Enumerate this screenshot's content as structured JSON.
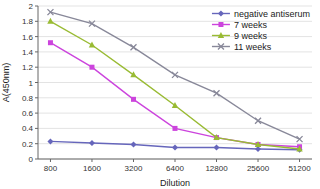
{
  "chart_data": {
    "type": "line",
    "categories": [
      "800",
      "1600",
      "3200",
      "6400",
      "12800",
      "25600",
      "51200"
    ],
    "series": [
      {
        "name": "negative antiserum",
        "color": "#6666bb",
        "marker": "diamond",
        "line_style": "solid",
        "values": [
          0.23,
          0.21,
          0.19,
          0.15,
          0.15,
          0.13,
          0.12
        ]
      },
      {
        "name": "7 weeks",
        "color": "#cc44dd",
        "marker": "square",
        "line_style": "solid",
        "values": [
          1.52,
          1.2,
          0.78,
          0.4,
          0.28,
          0.19,
          0.16
        ]
      },
      {
        "name": "9 weeks",
        "color": "#99bb33",
        "marker": "triangle",
        "line_style": "solid",
        "values": [
          1.8,
          1.49,
          1.1,
          0.7,
          0.28,
          0.19,
          0.13
        ]
      },
      {
        "name": "11 weeks",
        "color": "#888899",
        "marker": "x",
        "line_style": "solid",
        "values": [
          1.92,
          1.77,
          1.46,
          1.1,
          0.86,
          0.5,
          0.26
        ]
      }
    ],
    "x_label": "Dilution",
    "y_label": "A(450nm)",
    "ylim": [
      0,
      2.0
    ],
    "yticks": [
      0,
      0.2,
      0.4,
      0.6,
      0.8,
      1.0,
      1.2,
      1.4,
      1.6,
      1.8,
      2
    ],
    "grid": true,
    "legend": "upper right"
  }
}
